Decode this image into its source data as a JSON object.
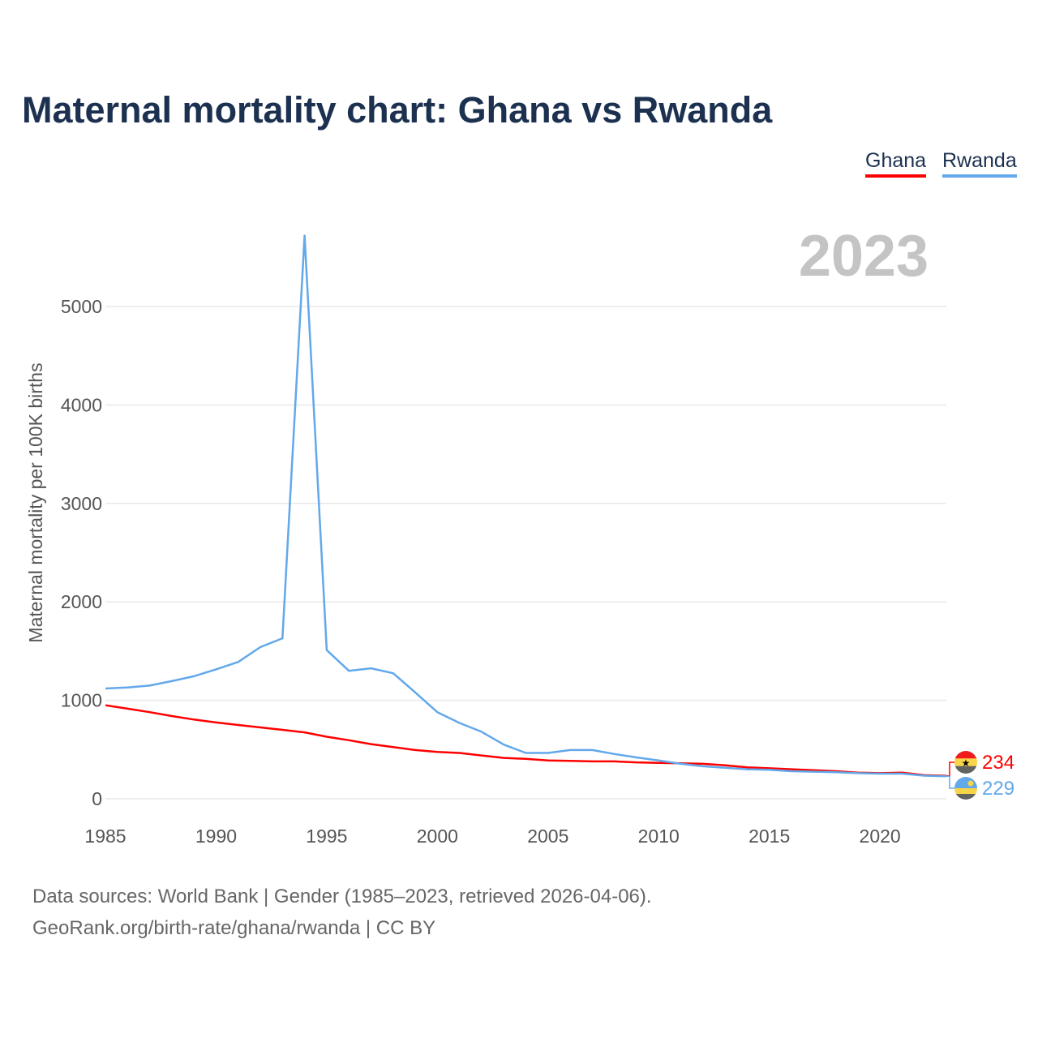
{
  "title": "Maternal mortality chart: Ghana vs Rwanda",
  "legend": [
    {
      "label": "Ghana",
      "color": "#ff0000"
    },
    {
      "label": "Rwanda",
      "color": "#62a8ea"
    }
  ],
  "year_label": "2023",
  "footer": {
    "line1": "Data sources: World Bank | Gender (1985–2023, retrieved 2026-04-06).",
    "line2": "GeoRank.org/birth-rate/ghana/rwanda | CC BY"
  },
  "chart_data": {
    "type": "line",
    "title": "Maternal mortality chart: Ghana vs Rwanda",
    "xlabel": "",
    "ylabel": "Maternal mortality per 100K births",
    "xlim": [
      1985,
      2023
    ],
    "ylim": [
      0,
      5000
    ],
    "x_ticks": [
      "1985",
      "1990",
      "1995",
      "2000",
      "2005",
      "2010",
      "2015",
      "2020"
    ],
    "y_ticks": [
      "0",
      "1000",
      "2000",
      "3000",
      "4000",
      "5000"
    ],
    "grid": true,
    "legend_position": "top-right",
    "x": [
      1985,
      1986,
      1987,
      1988,
      1989,
      1990,
      1991,
      1992,
      1993,
      1994,
      1995,
      1996,
      1997,
      1998,
      1999,
      2000,
      2001,
      2002,
      2003,
      2004,
      2005,
      2006,
      2007,
      2008,
      2009,
      2010,
      2011,
      2012,
      2013,
      2014,
      2015,
      2016,
      2017,
      2018,
      2019,
      2020,
      2021,
      2022,
      2023
    ],
    "series": [
      {
        "name": "Ghana",
        "color": "#ff0000",
        "end_label": "234",
        "values": [
          950,
          915,
          880,
          840,
          805,
          775,
          750,
          725,
          700,
          675,
          630,
          595,
          555,
          525,
          495,
          475,
          465,
          440,
          415,
          405,
          390,
          385,
          380,
          380,
          370,
          365,
          360,
          355,
          340,
          320,
          310,
          300,
          290,
          280,
          265,
          260,
          265,
          240,
          234
        ]
      },
      {
        "name": "Rwanda",
        "color": "#62a8ea",
        "end_label": "229",
        "values": [
          1120,
          1130,
          1150,
          1195,
          1245,
          1315,
          1390,
          1540,
          1630,
          5720,
          1510,
          1300,
          1325,
          1275,
          1080,
          880,
          770,
          680,
          550,
          465,
          465,
          495,
          495,
          455,
          420,
          390,
          355,
          330,
          315,
          300,
          295,
          280,
          275,
          270,
          260,
          255,
          255,
          235,
          229
        ]
      }
    ]
  }
}
